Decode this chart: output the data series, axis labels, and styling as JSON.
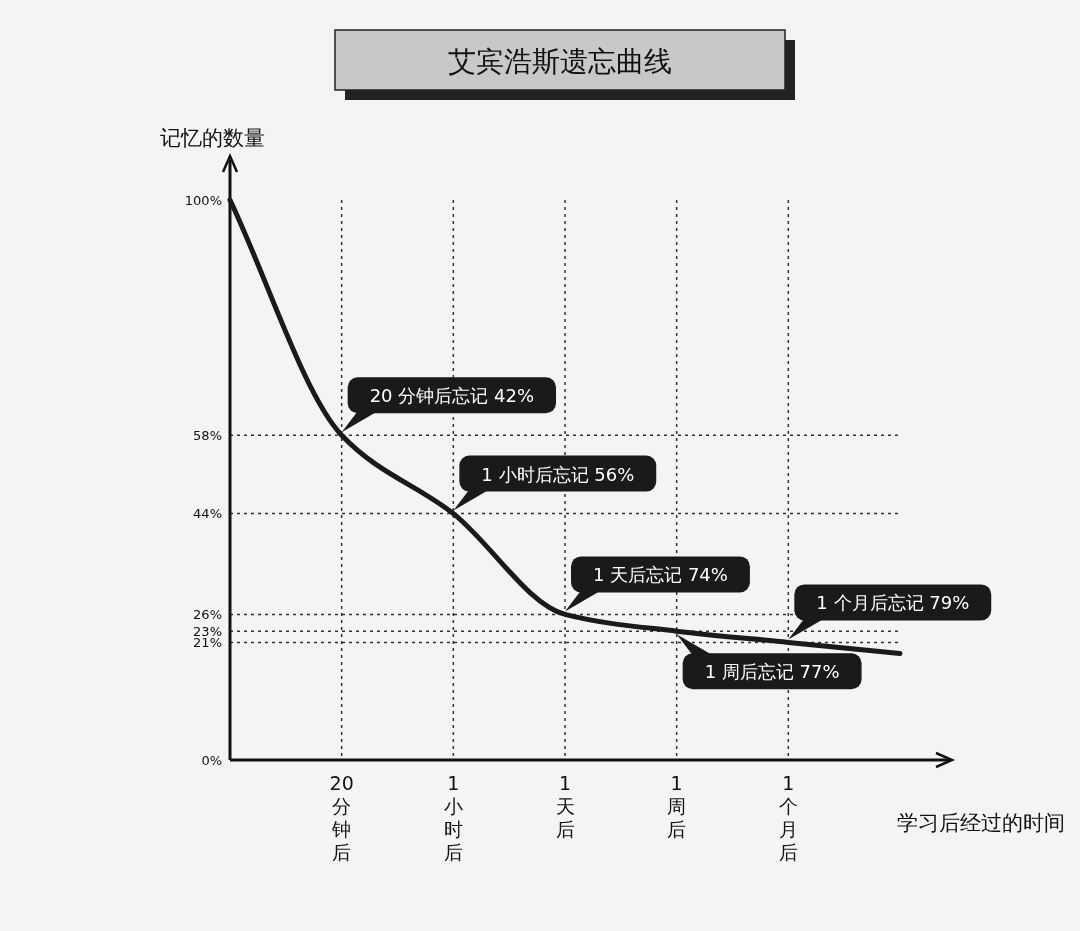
{
  "chart_data": {
    "type": "line",
    "title": "艾宾浩斯遗忘曲线",
    "ylabel": "记忆的数量",
    "xlabel": "学习后经过的时间",
    "categories": [
      null,
      "20分钟后",
      "1小时后",
      "1天后",
      "1周后",
      "1个月后",
      null
    ],
    "values": [
      100,
      58,
      44,
      26,
      23,
      21,
      19
    ],
    "color": "#1a1a1a",
    "line_style": "solid",
    "marker": "none",
    "grid": true,
    "ylim": [
      0,
      100
    ],
    "yticks": [
      {
        "value": 0,
        "label": "0%"
      },
      {
        "value": 21,
        "label": "21%"
      },
      {
        "value": 23,
        "label": "23%"
      },
      {
        "value": 26,
        "label": "26%"
      },
      {
        "value": 44,
        "label": "44%"
      },
      {
        "value": 58,
        "label": "58%"
      },
      {
        "value": 100,
        "label": "100%"
      }
    ],
    "annotations": [
      {
        "text": "20 分钟后忘记 42%",
        "x": "20分钟后",
        "y": 58
      },
      {
        "text": "1 小时后忘记 56%",
        "x": "1小时后",
        "y": 44
      },
      {
        "text": "1 天后忘记 74%",
        "x": "1天后",
        "y": 26
      },
      {
        "text": "1 周后忘记 77%",
        "x": "1周后",
        "y": 23
      },
      {
        "text": "1 个月后忘记 79%",
        "x": "1个月后",
        "y": 21
      }
    ]
  }
}
